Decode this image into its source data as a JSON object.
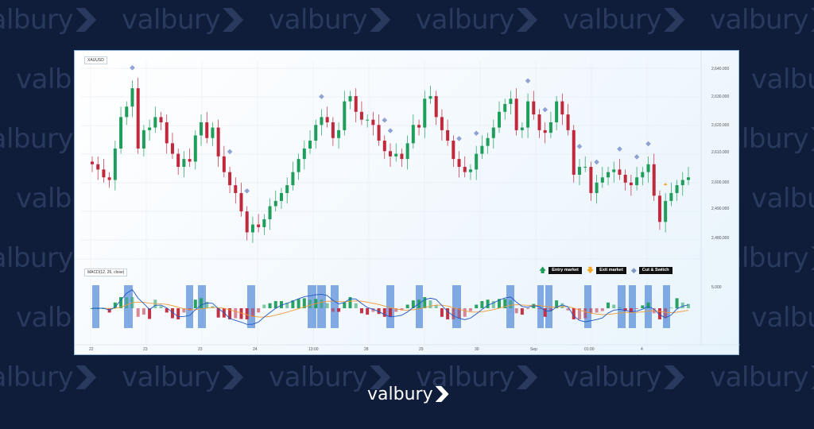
{
  "brand": {
    "name": "valbury"
  },
  "chart": {
    "symbol": "XAUUSD",
    "macd_label": "MACD(12, 26, close)",
    "macd_tick": "5.000",
    "legend": [
      {
        "label": "Entry market",
        "icon": "up-arrow-icon",
        "color": "#1e9e5a"
      },
      {
        "label": "Exit market",
        "icon": "down-arrow-icon",
        "color": "#f5a623"
      },
      {
        "label": "Cut & Switch",
        "icon": "diamond-icon",
        "color": "#7e93c6"
      }
    ],
    "colors": {
      "up": "#1e9e5a",
      "down": "#c0283c",
      "band": "#5b8fd9",
      "macd_line": "#1f57c3",
      "signal_line": "#f09a37",
      "marker": "#8fa3d6"
    }
  },
  "chart_data": {
    "type": "candlestick",
    "y_ticks": [
      "2,640.000",
      "2,630.000",
      "2,620.000",
      "2,610.000",
      "2,600.000",
      "2,490.000",
      "2,480.000"
    ],
    "x_ticks": [
      "22",
      "23",
      "23",
      "24",
      "13:00",
      "28",
      "29",
      "30",
      "Sep",
      "01:00",
      "4"
    ],
    "close": [
      2604,
      2602,
      2599,
      2598,
      2610,
      2622,
      2626,
      2633,
      2610,
      2617,
      2618,
      2622,
      2620,
      2612,
      2608,
      2603,
      2606,
      2605,
      2615,
      2620,
      2614,
      2618,
      2607,
      2601,
      2596,
      2593,
      2586,
      2578,
      2581,
      2580,
      2583,
      2588,
      2590,
      2593,
      2596,
      2601,
      2606,
      2610,
      2613,
      2619,
      2622,
      2620,
      2614,
      2617,
      2628,
      2630,
      2624,
      2621,
      2621,
      2619,
      2613,
      2609,
      2607,
      2608,
      2606,
      2612,
      2619,
      2618,
      2629,
      2630,
      2622,
      2617,
      2613,
      2606,
      2603,
      2601,
      2602,
      2608,
      2611,
      2614,
      2618,
      2624,
      2627,
      2629,
      2617,
      2618,
      2628,
      2623,
      2617,
      2616,
      2620,
      2628,
      2623,
      2617,
      2600,
      2603,
      2603,
      2593,
      2597,
      2599,
      2601,
      2602,
      2600,
      2597,
      2596,
      2599,
      2601,
      2604,
      2592,
      2582,
      2590,
      2593,
      2596,
      2598,
      2599
    ]
  }
}
